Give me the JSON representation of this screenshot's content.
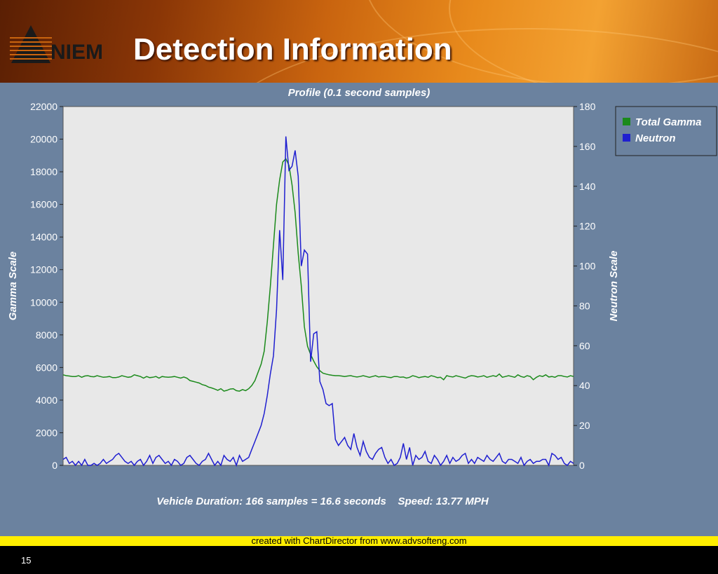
{
  "header": {
    "logo_text": "NIEM",
    "title": "Detection Information"
  },
  "colors": {
    "gamma": "#1b8a1b",
    "neutron": "#1f1fd0",
    "plot_bg": "#e8e8e8",
    "panel_bg": "#6b829f",
    "axis_text": "#ffffff"
  },
  "chart_data": {
    "type": "line",
    "title": "Profile (0.1 second samples)",
    "ylabel": "Gamma Scale",
    "y2label": "Neutron Scale",
    "ylim": [
      0,
      22000
    ],
    "y2lim": [
      0,
      180
    ],
    "yticks": [
      "0",
      "2000",
      "4000",
      "6000",
      "8000",
      "10000",
      "12000",
      "14000",
      "16000",
      "18000",
      "20000",
      "22000"
    ],
    "y2ticks": [
      "0",
      "20",
      "40",
      "60",
      "80",
      "100",
      "120",
      "140",
      "160",
      "180"
    ],
    "x_samples": 166,
    "legend_position": "right, outside plot, top",
    "series": [
      {
        "name": "Total Gamma",
        "axis": "left",
        "values": [
          5550,
          5500,
          5480,
          5450,
          5450,
          5500,
          5400,
          5480,
          5500,
          5450,
          5430,
          5500,
          5450,
          5400,
          5420,
          5450,
          5380,
          5380,
          5420,
          5500,
          5450,
          5400,
          5430,
          5550,
          5500,
          5450,
          5350,
          5450,
          5380,
          5400,
          5450,
          5350,
          5450,
          5420,
          5400,
          5420,
          5450,
          5400,
          5350,
          5420,
          5350,
          5200,
          5150,
          5100,
          5050,
          4950,
          4900,
          4800,
          4750,
          4680,
          4600,
          4700,
          4550,
          4600,
          4680,
          4700,
          4580,
          4550,
          4650,
          4580,
          4700,
          4900,
          5200,
          5700,
          6200,
          7000,
          8800,
          11000,
          13500,
          16000,
          17500,
          18600,
          18800,
          18400,
          17200,
          15500,
          13000,
          11000,
          8500,
          7300,
          6800,
          6400,
          6050,
          5800,
          5650,
          5600,
          5550,
          5520,
          5500,
          5500,
          5480,
          5450,
          5480,
          5500,
          5450,
          5420,
          5450,
          5500,
          5450,
          5400,
          5450,
          5500,
          5420,
          5450,
          5450,
          5400,
          5380,
          5450,
          5450,
          5400,
          5420,
          5350,
          5400,
          5500,
          5450,
          5380,
          5420,
          5450,
          5400,
          5500,
          5450,
          5380,
          5400,
          5250,
          5500,
          5450,
          5420,
          5500,
          5450,
          5400,
          5350,
          5450,
          5500,
          5480,
          5420,
          5450,
          5500,
          5400,
          5450,
          5500,
          5450,
          5600,
          5400,
          5450,
          5500,
          5450,
          5400,
          5550,
          5450,
          5400,
          5500,
          5450,
          5250,
          5400,
          5500,
          5450,
          5550,
          5420,
          5450,
          5400,
          5500,
          5500,
          5450,
          5420,
          5500,
          5450
        ]
      },
      {
        "name": "Neutron",
        "axis": "right",
        "values": [
          3,
          4,
          1,
          2,
          0,
          2,
          0,
          3,
          0,
          0,
          1,
          0,
          1,
          3,
          1,
          2,
          3,
          5,
          6,
          4,
          2,
          1,
          2,
          0,
          2,
          3,
          0,
          2,
          5,
          1,
          4,
          5,
          3,
          1,
          2,
          0,
          3,
          2,
          0,
          1,
          4,
          5,
          3,
          1,
          0,
          2,
          3,
          6,
          3,
          0,
          2,
          0,
          5,
          3,
          2,
          4,
          0,
          5,
          2,
          3,
          4,
          8,
          12,
          16,
          20,
          26,
          35,
          46,
          55,
          78,
          118,
          93,
          165,
          148,
          150,
          158,
          145,
          100,
          108,
          106,
          52,
          66,
          67,
          42,
          38,
          31,
          30,
          31,
          13,
          10,
          12,
          14,
          10,
          8,
          16,
          9,
          5,
          12,
          7,
          4,
          3,
          6,
          8,
          9,
          4,
          1,
          3,
          0,
          1,
          4,
          11,
          3,
          9,
          0,
          5,
          3,
          4,
          7,
          2,
          1,
          5,
          3,
          0,
          2,
          5,
          1,
          4,
          2,
          3,
          5,
          6,
          1,
          3,
          1,
          4,
          3,
          2,
          5,
          3,
          2,
          4,
          6,
          2,
          1,
          3,
          3,
          2,
          1,
          4,
          0,
          2,
          3,
          1,
          2,
          2,
          3,
          3,
          0,
          6,
          5,
          3,
          4,
          1,
          0,
          2,
          1
        ]
      }
    ],
    "footer_text": "Vehicle Duration: 166 samples = 16.6 seconds    Speed: 13.77 MPH",
    "credit": "created with ChartDirector from www.advsofteng.com"
  },
  "slide_number": "15"
}
